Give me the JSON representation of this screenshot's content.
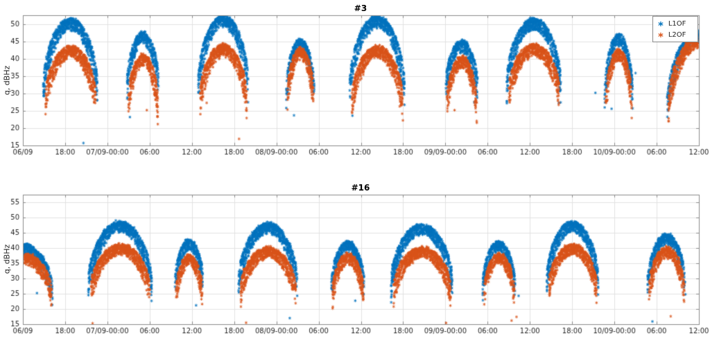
{
  "figure": {
    "background": "#ffffff"
  },
  "colors": {
    "l1of": "#0072BD",
    "l2of": "#D95319",
    "grid": "#e2e2e2",
    "axis": "#8a8a8a",
    "tick_label": "#262626"
  },
  "chart_data": [
    {
      "type": "scatter",
      "title": "#3",
      "ylabel": "q, dBHz",
      "ylim": [
        15,
        52.6
      ],
      "yticks": [
        15,
        20,
        25,
        30,
        35,
        40,
        45,
        50
      ],
      "x_hours_range": [
        0,
        96
      ],
      "xtick_interval_hours": 6,
      "xtick_labels": [
        "06/09",
        "18:00",
        "07/09-00:00",
        "06:00",
        "12:00",
        "18:00",
        "08/09-00:00",
        "06:00",
        "12:00",
        "18:00",
        "09/09-00:00",
        "06:00",
        "12:00",
        "18:00",
        "10/09-00:00",
        "06:00",
        "12:00"
      ],
      "grid": true,
      "legend_visible": true,
      "legend_position": "northeast",
      "series": [
        {
          "name": "L1OF",
          "color": "#0072BD"
        },
        {
          "name": "L2OF",
          "color": "#D95319"
        }
      ],
      "passes": [
        {
          "start": 2.9,
          "end": 10.6,
          "l1_peak": 51.5,
          "l1_base": 32,
          "l2_peak": 43.5,
          "l2_base": 29
        },
        {
          "start": 14.8,
          "end": 19.3,
          "l1_peak": 47.5,
          "l1_base": 33,
          "l2_peak": 41.0,
          "l2_base": 28
        },
        {
          "start": 24.9,
          "end": 32.0,
          "l1_peak": 52.4,
          "l1_base": 33,
          "l2_peak": 44.0,
          "l2_base": 29
        },
        {
          "start": 37.4,
          "end": 41.4,
          "l1_peak": 45.5,
          "l1_base": 31,
          "l2_peak": 43.0,
          "l2_base": 30
        },
        {
          "start": 46.4,
          "end": 54.2,
          "l1_peak": 52.2,
          "l1_base": 32,
          "l2_peak": 43.5,
          "l2_base": 28
        },
        {
          "start": 60.0,
          "end": 64.6,
          "l1_peak": 45.0,
          "l1_base": 32,
          "l2_peak": 40.5,
          "l2_base": 27
        },
        {
          "start": 68.7,
          "end": 76.4,
          "l1_peak": 51.5,
          "l1_base": 33,
          "l2_peak": 44.0,
          "l2_base": 31
        },
        {
          "start": 82.6,
          "end": 86.6,
          "l1_peak": 47.0,
          "l1_base": 30,
          "l2_peak": 42.5,
          "l2_base": 28
        },
        {
          "start": 91.5,
          "end": 96.0,
          "shape": "rise",
          "l1_peak": 48.0,
          "l1_base": 27,
          "l2_peak": 46.0,
          "l2_base": 27
        }
      ],
      "outliers": [
        {
          "series": "L1OF",
          "t": 8.6,
          "v": 15.7
        },
        {
          "series": "L1OF",
          "t": 15.2,
          "v": 23.2
        },
        {
          "series": "L2OF",
          "t": 17.6,
          "v": 25.2
        },
        {
          "series": "L2OF",
          "t": 26.1,
          "v": 27.3
        },
        {
          "series": "L2OF",
          "t": 30.7,
          "v": 16.9
        },
        {
          "series": "L1OF",
          "t": 38.5,
          "v": 23.7
        },
        {
          "series": "L1OF",
          "t": 46.8,
          "v": 23.6
        },
        {
          "series": "L2OF",
          "t": 53.5,
          "v": 26.3
        },
        {
          "series": "L2OF",
          "t": 61.3,
          "v": 25.2
        },
        {
          "series": "L1OF",
          "t": 64.1,
          "v": 27.5
        },
        {
          "series": "L1OF",
          "t": 76.1,
          "v": 27.3
        },
        {
          "series": "L1OF",
          "t": 81.3,
          "v": 30.2
        },
        {
          "series": "L1OF",
          "t": 83.6,
          "v": 25.6
        },
        {
          "series": "L1OF",
          "t": 87.0,
          "v": 35.9
        }
      ]
    },
    {
      "type": "scatter",
      "title": "#16",
      "ylabel": "q, dBHz",
      "ylim": [
        15,
        57.5
      ],
      "yticks": [
        15,
        20,
        25,
        30,
        35,
        40,
        45,
        50,
        55
      ],
      "x_hours_range": [
        0,
        96
      ],
      "xtick_interval_hours": 6,
      "xtick_labels": [
        "06/09",
        "18:00",
        "07/09-00:00",
        "06:00",
        "12:00",
        "18:00",
        "08/09-00:00",
        "06:00",
        "12:00",
        "18:00",
        "09/09-00:00",
        "06:00",
        "12:00",
        "18:00",
        "10/09-00:00",
        "06:00",
        "12:00"
      ],
      "grid": true,
      "legend_visible": false,
      "series": [
        {
          "name": "L1OF",
          "color": "#0072BD"
        },
        {
          "name": "L2OF",
          "color": "#D95319"
        }
      ],
      "passes": [
        {
          "start": 0.0,
          "end": 4.2,
          "shape": "fall",
          "l1_peak": 41.0,
          "l1_base": 27,
          "l2_peak": 38.0,
          "l2_base": 26
        },
        {
          "start": 9.3,
          "end": 18.3,
          "l1_peak": 48.5,
          "l1_base": 29,
          "l2_peak": 41.0,
          "l2_base": 27
        },
        {
          "start": 21.6,
          "end": 25.6,
          "l1_peak": 42.5,
          "l1_base": 29,
          "l2_peak": 37.5,
          "l2_base": 26
        },
        {
          "start": 30.6,
          "end": 39.0,
          "l1_peak": 48.0,
          "l1_base": 29,
          "l2_peak": 40.0,
          "l2_base": 27
        },
        {
          "start": 43.8,
          "end": 48.5,
          "l1_peak": 42.0,
          "l1_base": 28,
          "l2_peak": 38.0,
          "l2_base": 26
        },
        {
          "start": 52.3,
          "end": 61.0,
          "l1_peak": 47.5,
          "l1_base": 29,
          "l2_peak": 40.0,
          "l2_base": 27
        },
        {
          "start": 65.3,
          "end": 69.9,
          "l1_peak": 42.0,
          "l1_base": 28,
          "l2_peak": 38.0,
          "l2_base": 26
        },
        {
          "start": 74.4,
          "end": 81.7,
          "l1_peak": 48.5,
          "l1_base": 30,
          "l2_peak": 41.0,
          "l2_base": 28
        },
        {
          "start": 88.7,
          "end": 94.1,
          "l1_peak": 44.5,
          "l1_base": 28,
          "l2_peak": 40.0,
          "l2_base": 27
        }
      ],
      "outliers": [
        {
          "series": "L1OF",
          "t": 2.0,
          "v": 25.2
        },
        {
          "series": "L2OF",
          "t": 9.9,
          "v": 15.3
        },
        {
          "series": "L1OF",
          "t": 24.6,
          "v": 21.2
        },
        {
          "series": "L2OF",
          "t": 31.7,
          "v": 15.5
        },
        {
          "series": "L1OF",
          "t": 37.9,
          "v": 17.0
        },
        {
          "series": "L1OF",
          "t": 47.2,
          "v": 22.7
        },
        {
          "series": "L2OF",
          "t": 60.1,
          "v": 15.4
        },
        {
          "series": "L2OF",
          "t": 69.4,
          "v": 16.2
        },
        {
          "series": "L2OF",
          "t": 70.1,
          "v": 17.4
        },
        {
          "series": "L1OF",
          "t": 70.4,
          "v": 24.3
        },
        {
          "series": "L1OF",
          "t": 89.4,
          "v": 15.9
        },
        {
          "series": "L2OF",
          "t": 92.0,
          "v": 17.6
        }
      ]
    }
  ]
}
